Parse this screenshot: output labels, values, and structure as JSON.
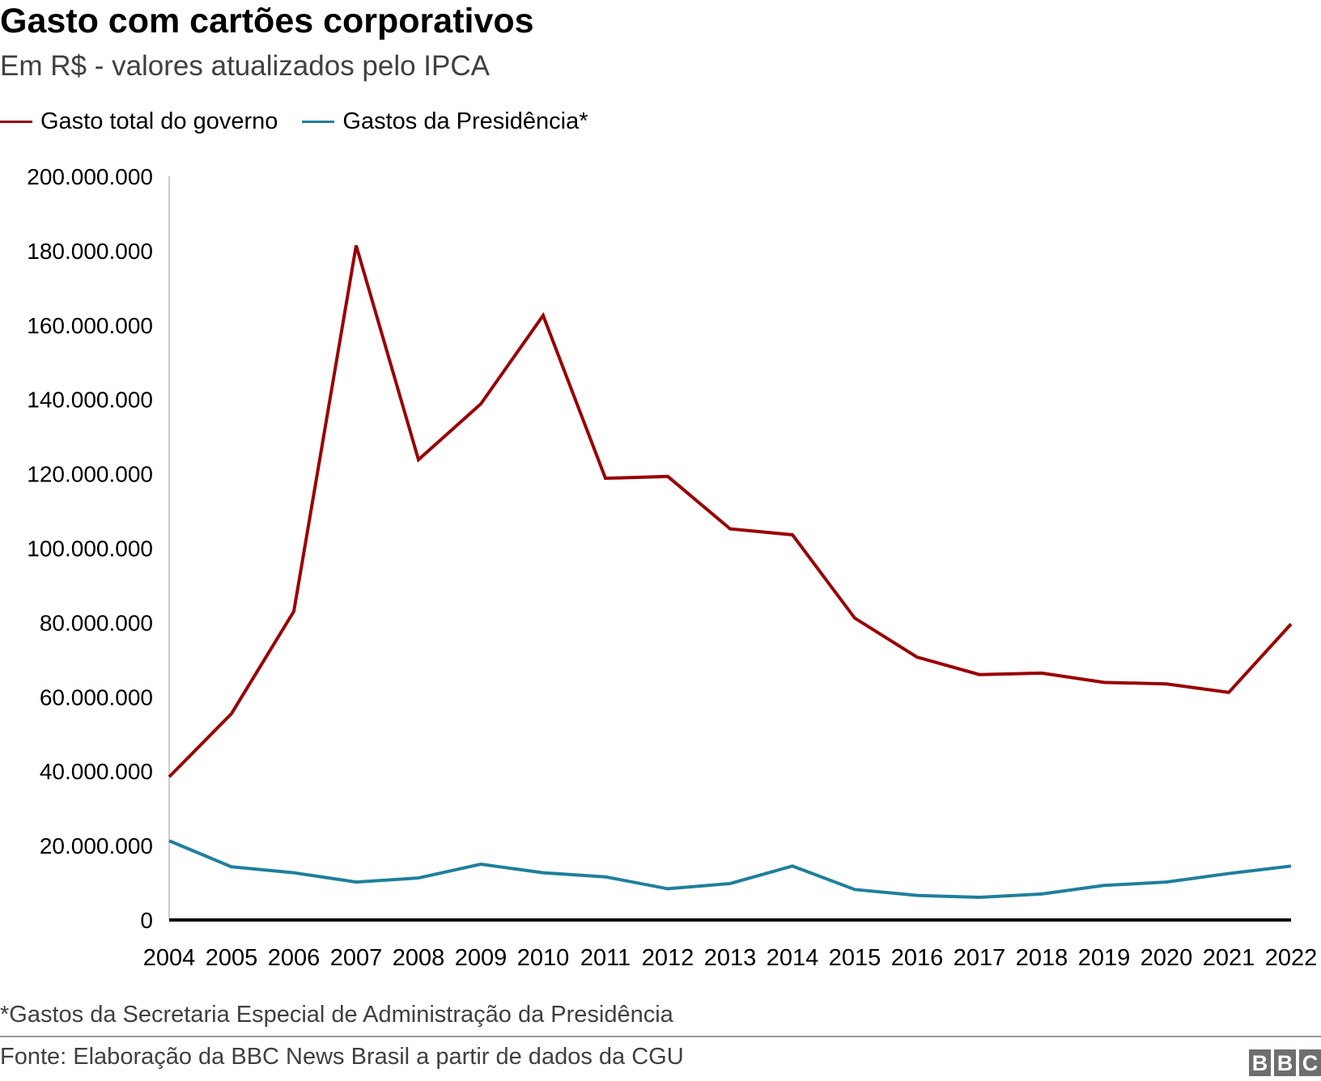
{
  "title": "Gasto com cartões corporativos",
  "subtitle": "Em R$ - valores atualizados pelo IPCA",
  "footnote": "*Gastos da Secretaria Especial de Administração da Presidência",
  "source": "Fonte: Elaboração da BBC News Brasil a partir de dados da CGU",
  "logo": "BBC",
  "chart_data": {
    "type": "line",
    "title": "Gasto com cartões corporativos",
    "subtitle": "Em R$ - valores atualizados pelo IPCA",
    "xlabel": "",
    "ylabel": "",
    "legend_position": "top-left",
    "grid": false,
    "ylim": [
      0,
      200000000
    ],
    "yticks": [
      0,
      20000000,
      40000000,
      60000000,
      80000000,
      100000000,
      120000000,
      140000000,
      160000000,
      180000000,
      200000000
    ],
    "ytick_labels": [
      "0",
      "20.000.000",
      "40.000.000",
      "60.000.000",
      "80.000.000",
      "100.000.000",
      "120.000.000",
      "140.000.000",
      "160.000.000",
      "180.000.000",
      "200.000.000"
    ],
    "x": [
      "2004",
      "2005",
      "2006",
      "2007",
      "2008",
      "2009",
      "2010",
      "2011",
      "2012",
      "2013",
      "2014",
      "2015",
      "2016",
      "2017",
      "2018",
      "2019",
      "2020",
      "2021",
      "2022"
    ],
    "series": [
      {
        "name": "Gasto total do governo",
        "color": "#990000",
        "values": [
          38500000,
          55500000,
          83000000,
          181400000,
          123800000,
          138800000,
          162600000,
          118800000,
          119300000,
          105200000,
          103600000,
          81200000,
          70700000,
          66000000,
          66400000,
          63900000,
          63500000,
          61200000,
          79600000
        ]
      },
      {
        "name": "Gastos da Presidência*",
        "color": "#1f7f9c",
        "values": [
          21300000,
          14300000,
          12700000,
          10200000,
          11300000,
          15000000,
          12700000,
          11600000,
          8400000,
          9800000,
          14500000,
          8200000,
          6600000,
          6100000,
          7000000,
          9300000,
          10200000,
          12500000,
          14500000
        ]
      }
    ]
  }
}
